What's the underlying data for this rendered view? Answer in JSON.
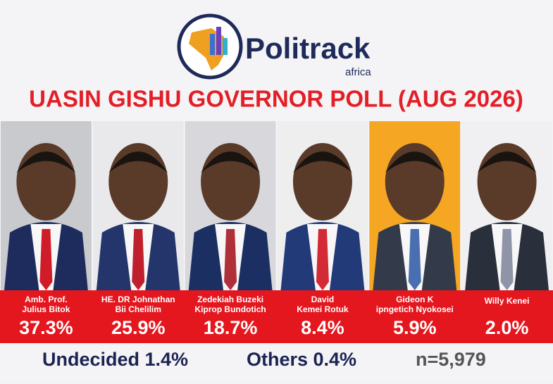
{
  "header": {
    "logo_name": "Politrack",
    "logo_sub": "africa",
    "title": "UASIN GISHU GOVERNOR POLL (AUG 2026)"
  },
  "candidates": [
    {
      "name_lines": [
        "Amb. Prof.",
        "Julius Bitok"
      ],
      "share": "37.3%"
    },
    {
      "name_lines": [
        "HE. DR Johnathan",
        "Bii Chelilim"
      ],
      "share": "25.9%"
    },
    {
      "name_lines": [
        "Zedekiah Buzeki",
        "Kiprop Bundotich"
      ],
      "share": "18.7%"
    },
    {
      "name_lines": [
        "David",
        "Kemei Rotuk"
      ],
      "share": "8.4%"
    },
    {
      "name_lines": [
        "Gideon K",
        "ipngetich Nyokosei"
      ],
      "share": "5.9%"
    },
    {
      "name_lines": [
        "Willy Kenei"
      ],
      "share": "2.0%"
    }
  ],
  "footer": {
    "undecided": "Undecided 1.4%",
    "others": "Others 0.4%",
    "sample": "n=5,979"
  }
}
